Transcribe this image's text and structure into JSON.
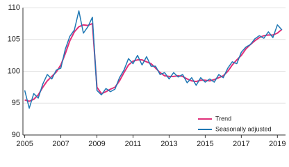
{
  "chart_data": {
    "type": "line",
    "x": [
      2005,
      2005.25,
      2005.5,
      2005.75,
      2006,
      2006.25,
      2006.5,
      2006.75,
      2007,
      2007.25,
      2007.5,
      2007.75,
      2008,
      2008.25,
      2008.5,
      2008.75,
      2009,
      2009.25,
      2009.5,
      2009.75,
      2010,
      2010.25,
      2010.5,
      2010.75,
      2011,
      2011.25,
      2011.5,
      2011.75,
      2012,
      2012.25,
      2012.5,
      2012.75,
      2013,
      2013.25,
      2013.5,
      2013.75,
      2014,
      2014.25,
      2014.5,
      2014.75,
      2015,
      2015.25,
      2015.5,
      2015.75,
      2016,
      2016.25,
      2016.5,
      2016.75,
      2017,
      2017.25,
      2017.5,
      2017.75,
      2018,
      2018.25,
      2018.5,
      2018.75,
      2019,
      2019.25
    ],
    "series": [
      {
        "name": "Trend",
        "color": "#e0307a",
        "values": [
          95.5,
          95.3,
          95.6,
          96.3,
          97.5,
          98.5,
          99.2,
          99.9,
          101,
          102.8,
          104.8,
          106.2,
          107,
          107.3,
          107.2,
          107.5,
          97.5,
          96.5,
          96.8,
          97.2,
          97.5,
          98.5,
          99.8,
          101,
          101.6,
          101.8,
          101.8,
          101.5,
          101.2,
          100.5,
          99.8,
          99.3,
          99.2,
          99.2,
          99.3,
          99.2,
          98.8,
          98.5,
          98.4,
          98.6,
          98.6,
          98.5,
          98.7,
          99,
          99.3,
          100,
          101,
          101.8,
          102.5,
          103.5,
          104.2,
          104.8,
          105.3,
          105.6,
          105.7,
          105.7,
          106,
          106.6
        ]
      },
      {
        "name": "Seasonally adjusted",
        "color": "#1f78b4",
        "values": [
          97,
          94.2,
          96.5,
          95.8,
          98,
          99.5,
          98.8,
          100.2,
          100.5,
          103.5,
          105.5,
          106.5,
          109.5,
          106,
          107,
          108.5,
          97,
          96.3,
          97.3,
          96.8,
          97.2,
          99,
          100.2,
          102,
          101.2,
          102.5,
          101,
          102.3,
          100.8,
          100.8,
          99.5,
          99.8,
          98.8,
          99.8,
          99.1,
          99.5,
          98.2,
          99,
          97.8,
          99,
          98.3,
          98.8,
          98.3,
          99.5,
          99,
          100.5,
          101.5,
          101.2,
          103,
          103.8,
          104.2,
          105.1,
          105.6,
          105.2,
          106.2,
          105.3,
          107.3,
          106.5
        ]
      }
    ],
    "xlim": [
      2004.9,
      2019.45
    ],
    "xticks": [
      2005,
      2007,
      2009,
      2011,
      2013,
      2015,
      2017,
      2019
    ],
    "ylim": [
      90,
      110
    ],
    "yticks": [
      90,
      95,
      100,
      105,
      110
    ],
    "grid": true
  }
}
